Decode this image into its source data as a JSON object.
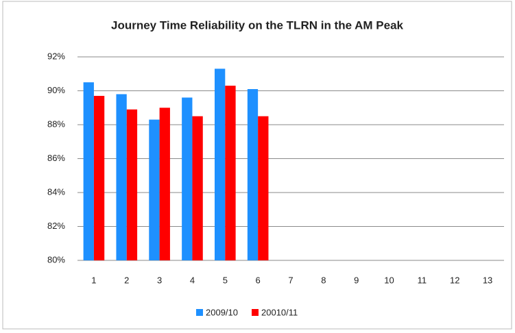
{
  "chart_data": {
    "type": "bar",
    "title": "Journey Time Reliability on  the TLRN in the AM Peak",
    "categories": [
      "1",
      "2",
      "3",
      "4",
      "5",
      "6",
      "7",
      "8",
      "9",
      "10",
      "11",
      "12",
      "13"
    ],
    "series": [
      {
        "name": "2009/10",
        "color": "#1e90ff",
        "values": [
          90.5,
          89.8,
          88.3,
          89.6,
          91.3,
          90.1,
          null,
          null,
          null,
          null,
          null,
          null,
          null
        ]
      },
      {
        "name": "20010/11",
        "color": "#ff0000",
        "values": [
          89.7,
          88.9,
          89.0,
          88.5,
          90.3,
          88.5,
          null,
          null,
          null,
          null,
          null,
          null,
          null
        ]
      }
    ],
    "ylim": [
      80,
      92
    ],
    "yticks": [
      {
        "value": 80,
        "label": "80%"
      },
      {
        "value": 82,
        "label": "82%"
      },
      {
        "value": 84,
        "label": "84%"
      },
      {
        "value": 86,
        "label": "86%"
      },
      {
        "value": 88,
        "label": "88%"
      },
      {
        "value": 90,
        "label": "90%"
      },
      {
        "value": 92,
        "label": "92%"
      }
    ],
    "grid": true,
    "legend": "bottom"
  }
}
